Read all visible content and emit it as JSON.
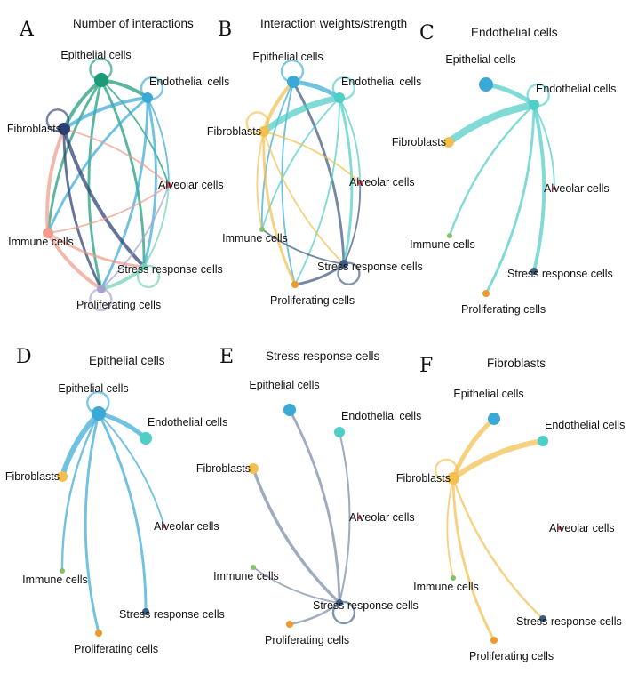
{
  "cell_types": {
    "epi": {
      "label": "Epithelial cells",
      "color": "#3aa9d6"
    },
    "endo": {
      "label": "Endothelial cells",
      "color": "#4fcdc7"
    },
    "fib": {
      "label": "Fibroblasts",
      "color": "#f3bf4f"
    },
    "alv": {
      "label": "Alveolar cells",
      "color": "#d9525a"
    },
    "imm": {
      "label": "Immune cells",
      "color": "#86c068"
    },
    "str": {
      "label": "Stress response cells",
      "color": "#3f5a80"
    },
    "pro": {
      "label": "Proliferating cells",
      "color": "#eb9a2c"
    }
  },
  "panels": [
    {
      "letter": "A",
      "title": "Number of interactions",
      "node_colors": {
        "epi": "#1a9b78",
        "endo": "#3aa9d6",
        "fib": "#2b3f72",
        "alv": "#d9525a",
        "imm": "#ef9d8c",
        "str": "#6fd2b3",
        "pro": "#a4a3d0"
      },
      "node_sizes": {
        "epi": 8,
        "endo": 6,
        "fib": 7,
        "alv": 3,
        "imm": 6,
        "str": 4,
        "pro": 5
      },
      "self_loops": [
        "epi",
        "endo",
        "fib",
        "str",
        "pro"
      ],
      "edges": [
        {
          "from": "epi",
          "to": "endo",
          "color": "#1a9b78",
          "weight": 3
        },
        {
          "from": "epi",
          "to": "fib",
          "color": "#1a9b78",
          "weight": 3
        },
        {
          "from": "epi",
          "to": "imm",
          "color": "#1a9b78",
          "weight": 2
        },
        {
          "from": "epi",
          "to": "str",
          "color": "#1a9b78",
          "weight": 2
        },
        {
          "from": "epi",
          "to": "pro",
          "color": "#1a9b78",
          "weight": 2
        },
        {
          "from": "epi",
          "to": "alv",
          "color": "#1a9b78",
          "weight": 1
        },
        {
          "from": "endo",
          "to": "fib",
          "color": "#3aa9d6",
          "weight": 3
        },
        {
          "from": "endo",
          "to": "imm",
          "color": "#3aa9d6",
          "weight": 2
        },
        {
          "from": "endo",
          "to": "str",
          "color": "#3aa9d6",
          "weight": 2
        },
        {
          "from": "endo",
          "to": "pro",
          "color": "#3aa9d6",
          "weight": 2
        },
        {
          "from": "endo",
          "to": "alv",
          "color": "#3aa9d6",
          "weight": 1
        },
        {
          "from": "fib",
          "to": "imm",
          "color": "#ef9d8c",
          "weight": 3
        },
        {
          "from": "fib",
          "to": "str",
          "color": "#2b3f72",
          "weight": 3
        },
        {
          "from": "fib",
          "to": "pro",
          "color": "#2b3f72",
          "weight": 2
        },
        {
          "from": "fib",
          "to": "alv",
          "color": "#ef9d8c",
          "weight": 1
        },
        {
          "from": "imm",
          "to": "str",
          "color": "#ef9d8c",
          "weight": 2
        },
        {
          "from": "imm",
          "to": "pro",
          "color": "#ef9d8c",
          "weight": 3
        },
        {
          "from": "imm",
          "to": "alv",
          "color": "#ef9d8c",
          "weight": 1
        },
        {
          "from": "str",
          "to": "pro",
          "color": "#6fd2b3",
          "weight": 3
        },
        {
          "from": "str",
          "to": "alv",
          "color": "#6fd2b3",
          "weight": 1
        },
        {
          "from": "pro",
          "to": "alv",
          "color": "#a4a3d0",
          "weight": 1
        }
      ]
    },
    {
      "letter": "B",
      "title": "Interaction weights/strength",
      "node_colors": {
        "epi": "#3aa9d6",
        "endo": "#4fcdc7",
        "fib": "#f3bf4f",
        "alv": "#d9525a",
        "imm": "#86c068",
        "str": "#3f5a80",
        "pro": "#eb9a2c"
      },
      "node_sizes": {
        "epi": 7,
        "endo": 6,
        "fib": 6,
        "alv": 3,
        "imm": 3,
        "str": 5,
        "pro": 4
      },
      "self_loops": [
        "epi",
        "endo",
        "fib",
        "str"
      ],
      "edges": [
        {
          "from": "epi",
          "to": "endo",
          "color": "#3aa9d6",
          "weight": 4
        },
        {
          "from": "epi",
          "to": "fib",
          "color": "#f3bf4f",
          "weight": 3
        },
        {
          "from": "epi",
          "to": "str",
          "color": "#3f5a80",
          "weight": 2
        },
        {
          "from": "epi",
          "to": "imm",
          "color": "#3aa9d6",
          "weight": 1
        },
        {
          "from": "epi",
          "to": "pro",
          "color": "#3aa9d6",
          "weight": 1
        },
        {
          "from": "endo",
          "to": "fib",
          "color": "#4fcdc7",
          "weight": 6
        },
        {
          "from": "endo",
          "to": "str",
          "color": "#4fcdc7",
          "weight": 2
        },
        {
          "from": "endo",
          "to": "imm",
          "color": "#4fcdc7",
          "weight": 1
        },
        {
          "from": "endo",
          "to": "pro",
          "color": "#4fcdc7",
          "weight": 1
        },
        {
          "from": "endo",
          "to": "alv",
          "color": "#4fcdc7",
          "weight": 1
        },
        {
          "from": "fib",
          "to": "imm",
          "color": "#f3bf4f",
          "weight": 1
        },
        {
          "from": "fib",
          "to": "pro",
          "color": "#f3bf4f",
          "weight": 2
        },
        {
          "from": "fib",
          "to": "str",
          "color": "#f3bf4f",
          "weight": 1
        },
        {
          "from": "fib",
          "to": "alv",
          "color": "#f3bf4f",
          "weight": 1
        },
        {
          "from": "str",
          "to": "imm",
          "color": "#3f5a80",
          "weight": 1
        },
        {
          "from": "str",
          "to": "pro",
          "color": "#3f5a80",
          "weight": 2
        },
        {
          "from": "str",
          "to": "alv",
          "color": "#3f5a80",
          "weight": 1
        }
      ]
    },
    {
      "letter": "C",
      "title": "Endothelial cells",
      "source": "endo",
      "node_colors": {
        "epi": "#3aa9d6",
        "endo": "#4fcdc7",
        "fib": "#f3bf4f",
        "alv": "#d9525a",
        "imm": "#86c068",
        "str": "#3f5a80",
        "pro": "#eb9a2c"
      },
      "node_sizes": {
        "epi": 8,
        "endo": 6,
        "fib": 6,
        "alv": 2,
        "imm": 3,
        "str": 4,
        "pro": 4
      },
      "self_loops": [
        "endo"
      ],
      "edges": [
        {
          "from": "endo",
          "to": "fib",
          "color": "#4fcdc7",
          "weight": 7
        },
        {
          "from": "endo",
          "to": "epi",
          "color": "#4fcdc7",
          "weight": 4
        },
        {
          "from": "endo",
          "to": "str",
          "color": "#4fcdc7",
          "weight": 3
        },
        {
          "from": "endo",
          "to": "pro",
          "color": "#4fcdc7",
          "weight": 2
        },
        {
          "from": "endo",
          "to": "imm",
          "color": "#4fcdc7",
          "weight": 1.5
        },
        {
          "from": "endo",
          "to": "alv",
          "color": "#4fcdc7",
          "weight": 1
        }
      ]
    },
    {
      "letter": "D",
      "title": "Epithelial cells",
      "source": "epi",
      "node_colors": {
        "epi": "#3aa9d6",
        "endo": "#4fcdc7",
        "fib": "#f3bf4f",
        "alv": "#d9525a",
        "imm": "#86c068",
        "str": "#3f5a80",
        "pro": "#eb9a2c"
      },
      "node_sizes": {
        "epi": 8,
        "endo": 7,
        "fib": 6,
        "alv": 2,
        "imm": 3,
        "str": 4,
        "pro": 4
      },
      "self_loops": [
        "epi"
      ],
      "edges": [
        {
          "from": "epi",
          "to": "fib",
          "color": "#3aa9d6",
          "weight": 5
        },
        {
          "from": "epi",
          "to": "endo",
          "color": "#3aa9d6",
          "weight": 4
        },
        {
          "from": "epi",
          "to": "str",
          "color": "#3aa9d6",
          "weight": 2
        },
        {
          "from": "epi",
          "to": "pro",
          "color": "#3aa9d6",
          "weight": 2
        },
        {
          "from": "epi",
          "to": "imm",
          "color": "#3aa9d6",
          "weight": 1.5
        },
        {
          "from": "epi",
          "to": "alv",
          "color": "#3aa9d6",
          "weight": 1
        }
      ]
    },
    {
      "letter": "E",
      "title": "Stress response cells",
      "source": "str",
      "node_colors": {
        "epi": "#3aa9d6",
        "endo": "#4fcdc7",
        "fib": "#f3bf4f",
        "alv": "#d9525a",
        "imm": "#86c068",
        "str": "#3f5a80",
        "pro": "#eb9a2c"
      },
      "node_sizes": {
        "epi": 7,
        "endo": 6,
        "fib": 6,
        "alv": 2,
        "imm": 3,
        "str": 4,
        "pro": 4
      },
      "self_loops": [
        "str"
      ],
      "edges": [
        {
          "from": "str",
          "to": "fib",
          "color": "#7a8ba8",
          "weight": 2.5
        },
        {
          "from": "str",
          "to": "epi",
          "color": "#7a8ba8",
          "weight": 2
        },
        {
          "from": "str",
          "to": "endo",
          "color": "#7a8ba8",
          "weight": 1.2
        },
        {
          "from": "str",
          "to": "pro",
          "color": "#7a8ba8",
          "weight": 1.5
        },
        {
          "from": "str",
          "to": "imm",
          "color": "#7a8ba8",
          "weight": 1
        }
      ]
    },
    {
      "letter": "F",
      "title": "Fibroblasts",
      "source": "fib",
      "node_colors": {
        "epi": "#3aa9d6",
        "endo": "#4fcdc7",
        "fib": "#f3bf4f",
        "alv": "#d9525a",
        "imm": "#86c068",
        "str": "#3f5a80",
        "pro": "#eb9a2c"
      },
      "node_sizes": {
        "epi": 7,
        "endo": 6,
        "fib": 7,
        "alv": 2,
        "imm": 3,
        "str": 4,
        "pro": 4
      },
      "self_loops": [
        "fib"
      ],
      "edges": [
        {
          "from": "fib",
          "to": "endo",
          "color": "#f3bf4f",
          "weight": 5
        },
        {
          "from": "fib",
          "to": "epi",
          "color": "#f3bf4f",
          "weight": 4
        },
        {
          "from": "fib",
          "to": "pro",
          "color": "#f3bf4f",
          "weight": 2
        },
        {
          "from": "fib",
          "to": "str",
          "color": "#f3bf4f",
          "weight": 1.5
        },
        {
          "from": "fib",
          "to": "imm",
          "color": "#f3bf4f",
          "weight": 1
        }
      ]
    }
  ]
}
